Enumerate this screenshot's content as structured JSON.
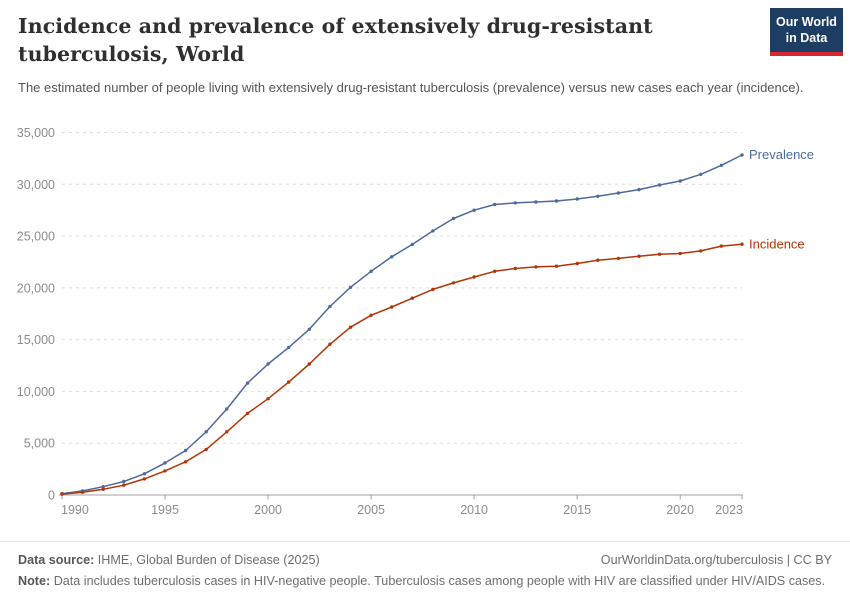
{
  "header": {
    "title": "Incidence and prevalence of extensively drug-resistant tuberculosis, World",
    "subtitle": "The estimated number of people living with extensively drug-resistant tuberculosis (prevalence) versus new cases each year (incidence).",
    "logo": {
      "line1": "Our World",
      "line2": "in Data",
      "bg_color": "#1d3d63",
      "accent_color": "#d7282f"
    }
  },
  "footer": {
    "source_label": "Data source:",
    "source_text": "IHME, Global Burden of Disease (2025)",
    "rights": "OurWorldinData.org/tuberculosis | CC BY",
    "note_label": "Note:",
    "note_text": "Data includes tuberculosis cases in HIV-negative people. Tuberculosis cases among people with HIV are classified under HIV/AIDS cases."
  },
  "chart_data": {
    "type": "line",
    "title": "Incidence and prevalence of extensively drug-resistant tuberculosis, World",
    "xlabel": "",
    "ylabel": "",
    "xlim": [
      1990,
      2023
    ],
    "ylim": [
      0,
      35000
    ],
    "x_ticks": [
      1990,
      1995,
      2000,
      2005,
      2010,
      2015,
      2020,
      2023
    ],
    "y_ticks": [
      0,
      5000,
      10000,
      15000,
      20000,
      25000,
      30000,
      35000
    ],
    "grid": "horizontal-dashed",
    "legend_position": "end-of-line-labels",
    "marker": "point-per-year",
    "x": [
      1990,
      1991,
      1992,
      1993,
      1994,
      1995,
      1996,
      1997,
      1998,
      1999,
      2000,
      2001,
      2002,
      2003,
      2004,
      2005,
      2006,
      2007,
      2008,
      2009,
      2010,
      2011,
      2012,
      2013,
      2014,
      2015,
      2016,
      2017,
      2018,
      2019,
      2020,
      2021,
      2022,
      2023
    ],
    "series": [
      {
        "name": "Prevalence",
        "color": "#4c6a9c",
        "values": [
          130,
          400,
          800,
          1300,
          2050,
          3100,
          4300,
          6100,
          8300,
          10800,
          12650,
          14250,
          16000,
          18200,
          20050,
          21600,
          23000,
          24200,
          25500,
          26700,
          27500,
          28050,
          28200,
          28290,
          28390,
          28580,
          28840,
          29160,
          29490,
          29930,
          30320,
          30960,
          31830,
          32830
        ]
      },
      {
        "name": "Incidence",
        "color": "#b13507",
        "values": [
          90,
          260,
          550,
          950,
          1550,
          2330,
          3210,
          4400,
          6100,
          7880,
          9300,
          10900,
          12650,
          14550,
          16200,
          17350,
          18150,
          19000,
          19850,
          20480,
          21050,
          21600,
          21870,
          22020,
          22090,
          22350,
          22670,
          22840,
          23060,
          23250,
          23320,
          23570,
          24030,
          24220
        ]
      }
    ],
    "axis_color": "#a0a0a0",
    "tick_label_color": "#8c8c8c",
    "gridline_color": "#dedede"
  }
}
